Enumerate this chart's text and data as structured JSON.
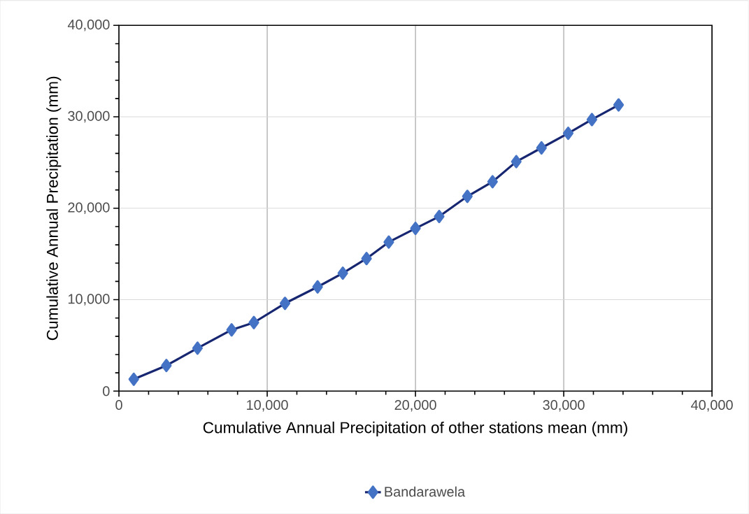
{
  "chart_data": {
    "type": "line",
    "xlabel": "Cumulative Annual Precipitation of other stations mean (mm)",
    "ylabel": "Cumulative Annual Precipitation (mm)",
    "x": [
      1000,
      3200,
      5300,
      7600,
      9100,
      11200,
      13400,
      15100,
      16700,
      18200,
      20000,
      21600,
      23500,
      25200,
      26800,
      28500,
      30300,
      31900,
      33700
    ],
    "series": [
      {
        "name": "Bandarawela",
        "color": "#4472c4",
        "values": [
          1300,
          2800,
          4700,
          6700,
          7500,
          9600,
          11400,
          12900,
          14500,
          16300,
          17800,
          19100,
          21300,
          22900,
          25100,
          26600,
          28200,
          29700,
          31300
        ]
      }
    ],
    "xlim": [
      0,
      40000
    ],
    "ylim": [
      0,
      40000
    ],
    "xticks": [
      0,
      {
        "value": 10000,
        "label": "10,000"
      },
      {
        "value": 20000,
        "label": "20,000"
      },
      {
        "value": 30000,
        "label": "30,000"
      },
      {
        "value": 40000,
        "label": "40,000"
      }
    ],
    "yticks": [
      0,
      {
        "value": 10000,
        "label": "10,000"
      },
      {
        "value": 20000,
        "label": "20,000"
      },
      {
        "value": 30000,
        "label": "30,000"
      },
      {
        "value": 40000,
        "label": "40,000"
      }
    ],
    "grid": true,
    "legend": "bottom",
    "marker": "diamond",
    "line_style": "solid"
  }
}
